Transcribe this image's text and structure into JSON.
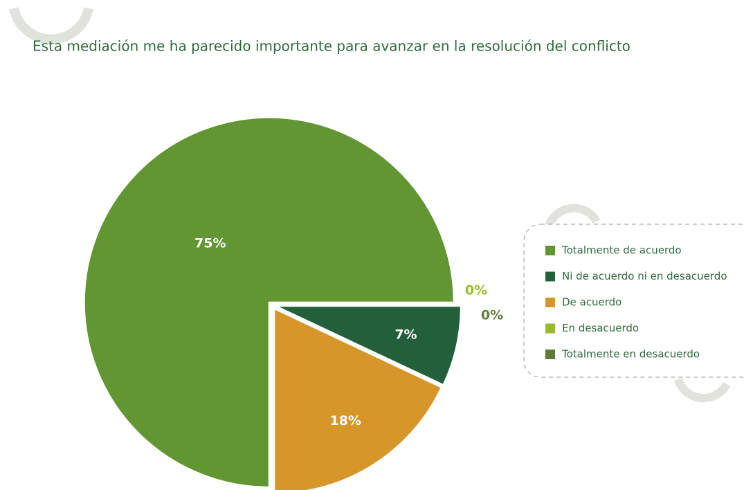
{
  "chart_data": {
    "type": "pie",
    "title": "Esta mediación me ha parecido importante para avanzar en la resolución del conflicto",
    "categories": [
      "Totalmente de acuerdo",
      "Ni de acuerdo ni en desacuerdo",
      "De acuerdo",
      "En desacuerdo",
      "Totalmente en desacuerdo"
    ],
    "values": [
      75,
      7,
      18,
      0,
      0
    ],
    "value_labels": [
      "75%",
      "7%",
      "18%",
      "0%",
      "0%"
    ],
    "colors": [
      "#629632",
      "#245f3c",
      "#d6962a",
      "#95bd2c",
      "#5f7d3a"
    ],
    "legend": "right"
  }
}
